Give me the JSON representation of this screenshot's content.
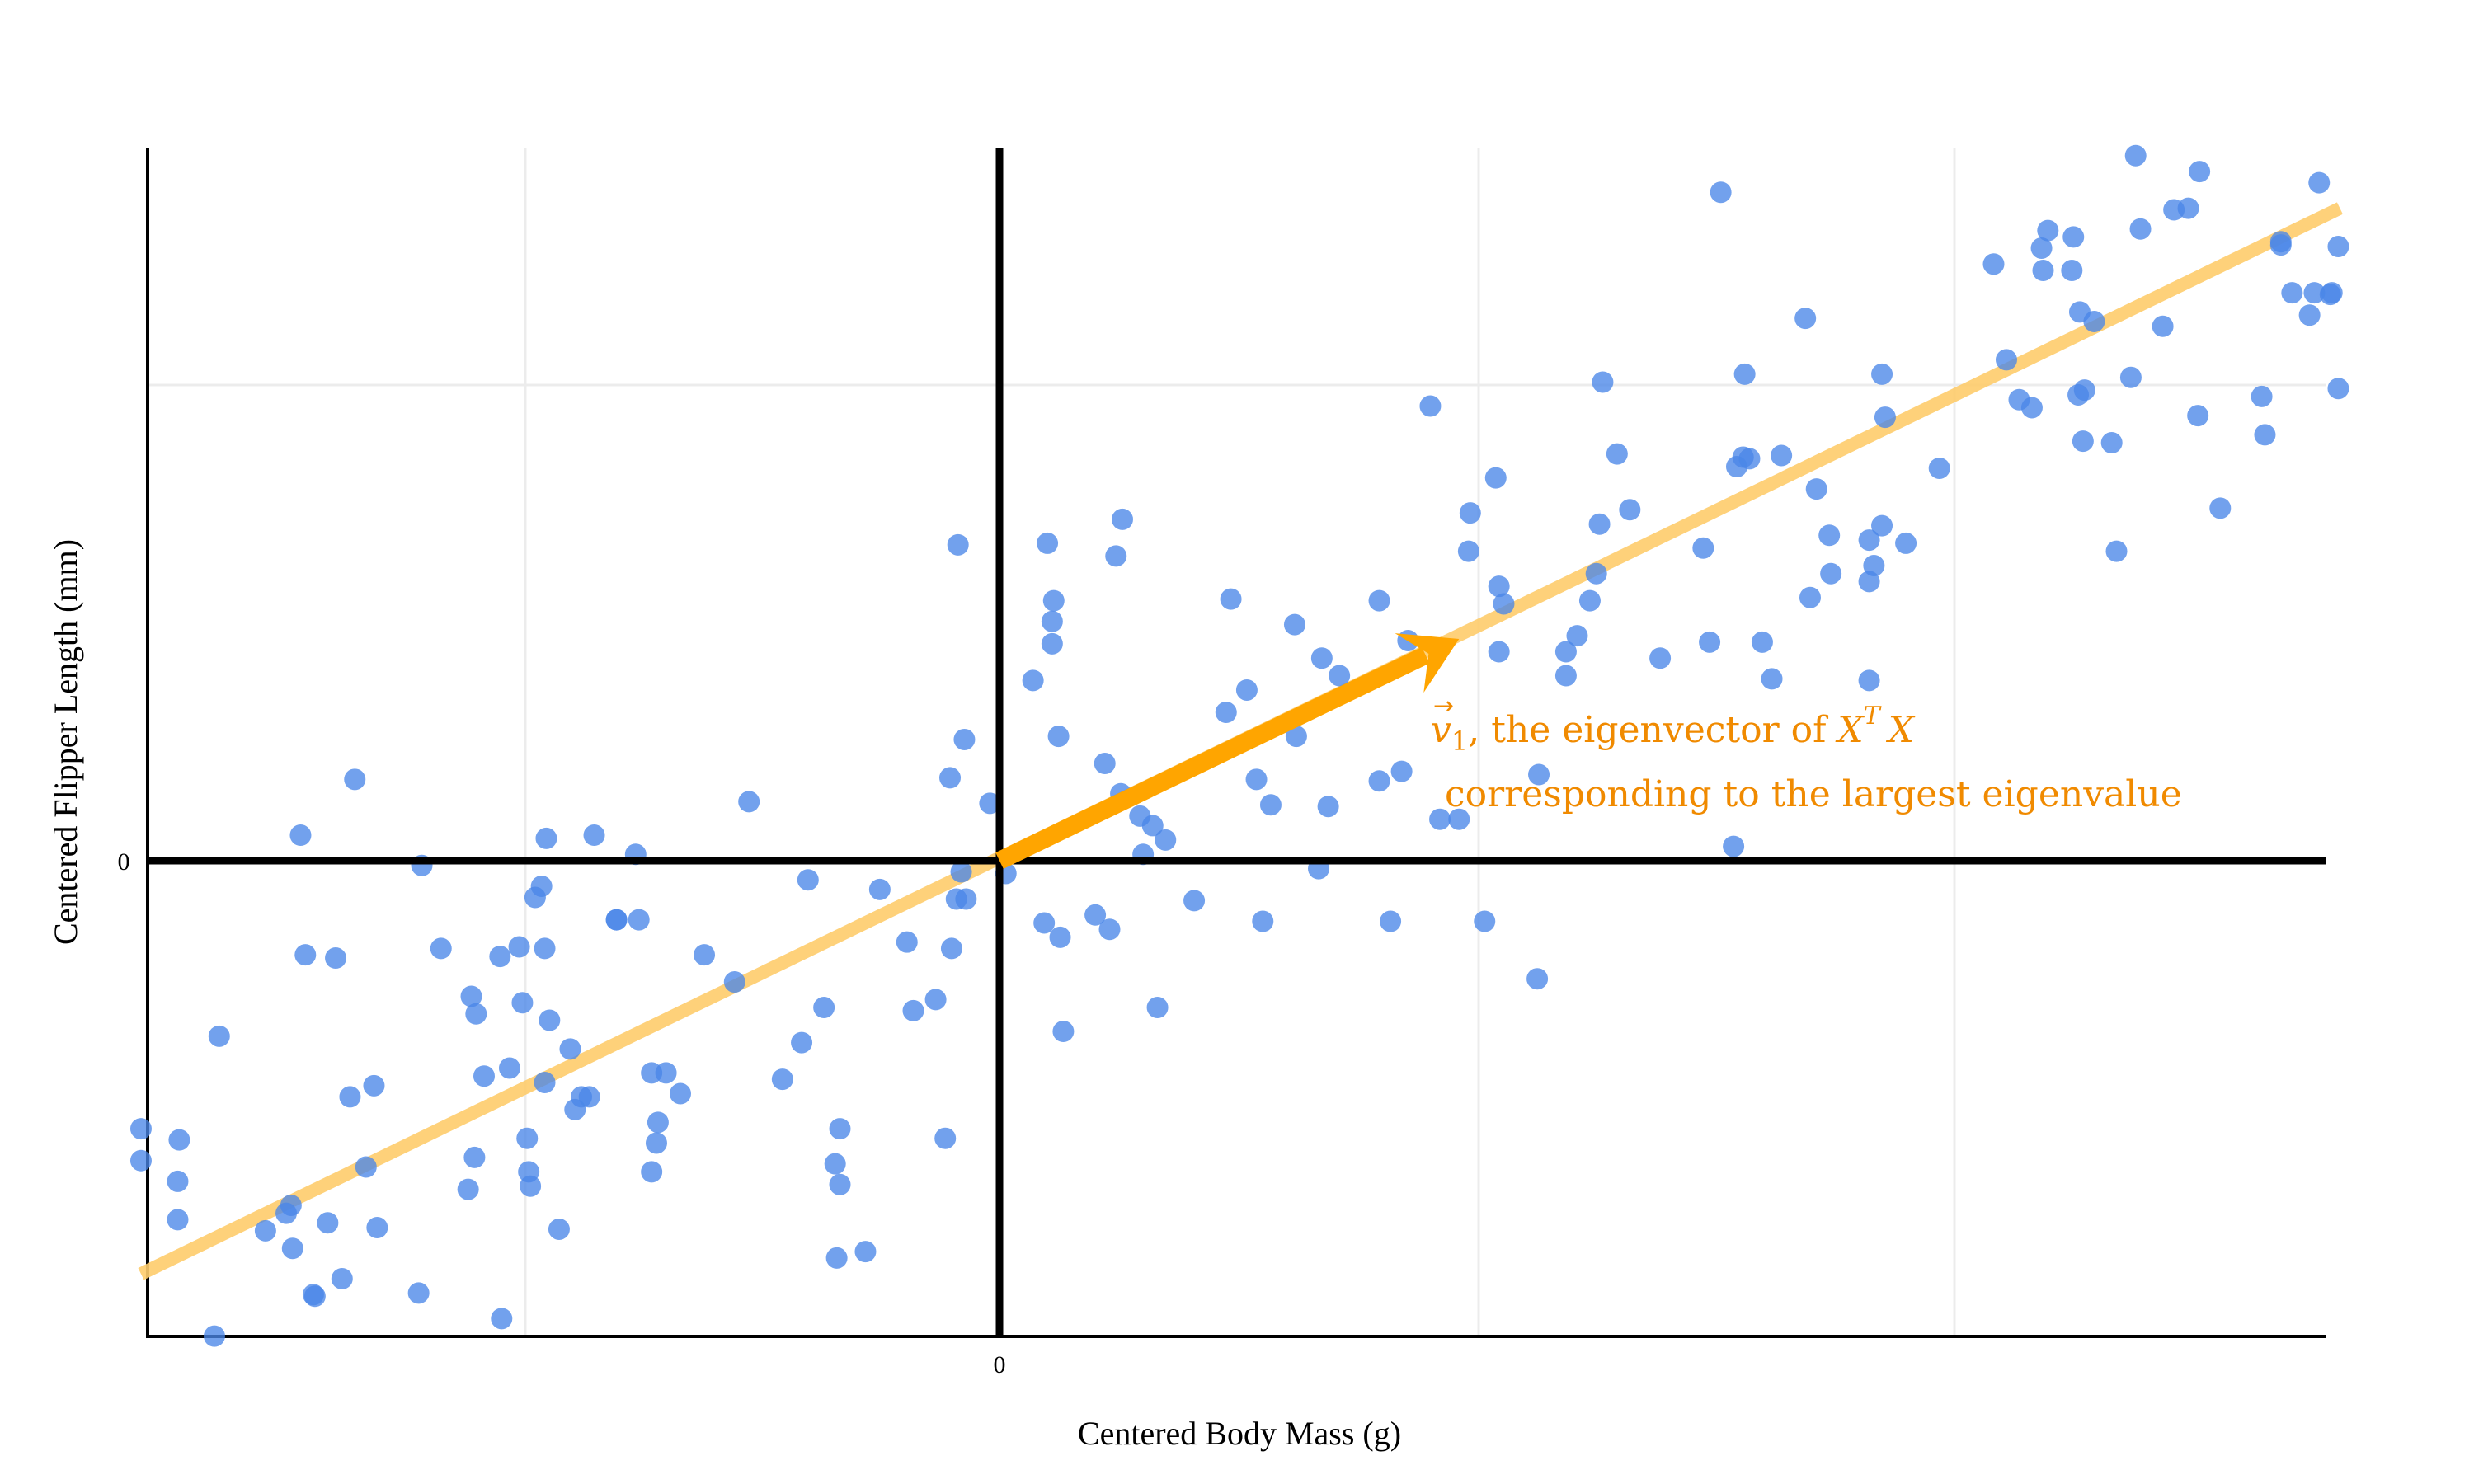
{
  "chart_data": {
    "type": "scatter",
    "title": "",
    "xlabel": "Centered Body Mass (g)",
    "ylabel": "Centered Flipper Length (mm)",
    "x_ticks": [
      "0"
    ],
    "y_ticks": [
      "0"
    ],
    "grid": true,
    "legend": null,
    "units_note": "x,y are plot-space offsets from the origin (0,0); x right-positive, y up-positive, in approximate preview-pixel units (1 unit ≈ 1.935 px at 3000px width)",
    "x_range": [
      -538,
      840
    ],
    "y_range": [
      -302,
      452
    ],
    "point_color": "#4a86e8",
    "points": [
      [
        -538,
        -168
      ],
      [
        -538,
        -188
      ],
      [
        -514,
        -175
      ],
      [
        -515,
        -201
      ],
      [
        -515,
        -225
      ],
      [
        -489,
        -110
      ],
      [
        -492,
        -298
      ],
      [
        -460,
        -232
      ],
      [
        -447,
        -221
      ],
      [
        -444,
        -216
      ],
      [
        -443,
        -243
      ],
      [
        -430,
        -272
      ],
      [
        -435,
        -59
      ],
      [
        -438,
        16
      ],
      [
        -421,
        -227
      ],
      [
        -416,
        -61
      ],
      [
        -412,
        -262
      ],
      [
        -429,
        -273
      ],
      [
        -407,
        -148
      ],
      [
        -397,
        -192
      ],
      [
        -390,
        -230
      ],
      [
        -392,
        -141
      ],
      [
        -404,
        51
      ],
      [
        -362,
        -3
      ],
      [
        -364,
        -271
      ],
      [
        -350,
        -55
      ],
      [
        -329,
        -186
      ],
      [
        -333,
        -206
      ],
      [
        -331,
        -85
      ],
      [
        -328,
        -96
      ],
      [
        -323,
        -135
      ],
      [
        -313,
        -60
      ],
      [
        -307,
        -130
      ],
      [
        -312,
        -287
      ],
      [
        -301,
        -54
      ],
      [
        -299,
        -89
      ],
      [
        -296,
        -174
      ],
      [
        -295,
        -195
      ],
      [
        -294,
        -204
      ],
      [
        -291,
        -23
      ],
      [
        -287,
        -16
      ],
      [
        -285,
        -55
      ],
      [
        -284,
        14
      ],
      [
        -282,
        -100
      ],
      [
        -285,
        -139
      ],
      [
        -276,
        -231
      ],
      [
        -269,
        -118
      ],
      [
        -266,
        -156
      ],
      [
        -262,
        -148
      ],
      [
        -257,
        -148
      ],
      [
        -254,
        16
      ],
      [
        -240,
        -37
      ],
      [
        -240,
        -37
      ],
      [
        -226,
        -37
      ],
      [
        -228,
        4
      ],
      [
        -218,
        -133
      ],
      [
        -218,
        -195
      ],
      [
        -214,
        -164
      ],
      [
        -215,
        -177
      ],
      [
        -209,
        -133
      ],
      [
        -200,
        -146
      ],
      [
        -185,
        -59
      ],
      [
        -166,
        -76
      ],
      [
        -157,
        37
      ],
      [
        -136,
        -137
      ],
      [
        -120,
        -12
      ],
      [
        -124,
        -114
      ],
      [
        -110,
        -92
      ],
      [
        -100,
        -168
      ],
      [
        -103,
        -190
      ],
      [
        -100,
        -203
      ],
      [
        -102,
        -249
      ],
      [
        -84,
        -245
      ],
      [
        -75,
        -18
      ],
      [
        -58,
        -51
      ],
      [
        -54,
        -94
      ],
      [
        -40,
        -87
      ],
      [
        -34,
        -174
      ],
      [
        -31,
        52
      ],
      [
        -30,
        -55
      ],
      [
        -27,
        -24
      ],
      [
        -24,
        -7
      ],
      [
        -21,
        -24
      ],
      [
        -26,
        198
      ],
      [
        -22,
        76
      ],
      [
        -6,
        36
      ],
      [
        4,
        -8
      ],
      [
        21,
        113
      ],
      [
        28,
        -39
      ],
      [
        30,
        199
      ],
      [
        33,
        150
      ],
      [
        33,
        136
      ],
      [
        34,
        163
      ],
      [
        37,
        78
      ],
      [
        38,
        -48
      ],
      [
        40,
        -107
      ],
      [
        60,
        -34
      ],
      [
        66,
        61
      ],
      [
        69,
        -43
      ],
      [
        73,
        191
      ],
      [
        77,
        214
      ],
      [
        76,
        42
      ],
      [
        88,
        28
      ],
      [
        90,
        4
      ],
      [
        96,
        22
      ],
      [
        99,
        -92
      ],
      [
        104,
        13
      ],
      [
        122,
        -25
      ],
      [
        142,
        93
      ],
      [
        145,
        164
      ],
      [
        155,
        107
      ],
      [
        161,
        51
      ],
      [
        165,
        -38
      ],
      [
        170,
        35
      ],
      [
        186,
        78
      ],
      [
        185,
        148
      ],
      [
        202,
        127
      ],
      [
        200,
        -5
      ],
      [
        206,
        34
      ],
      [
        213,
        116
      ],
      [
        238,
        50
      ],
      [
        238,
        163
      ],
      [
        245,
        -38
      ],
      [
        252,
        56
      ],
      [
        256,
        138
      ],
      [
        270,
        285
      ],
      [
        276,
        26
      ],
      [
        288,
        26
      ],
      [
        294,
        194
      ],
      [
        295,
        218
      ],
      [
        304,
        -38
      ],
      [
        311,
        240
      ],
      [
        313,
        172
      ],
      [
        313,
        131
      ],
      [
        316,
        161
      ],
      [
        337,
        -74
      ],
      [
        338,
        54
      ],
      [
        355,
        116
      ],
      [
        355,
        131
      ],
      [
        362,
        141
      ],
      [
        370,
        163
      ],
      [
        374,
        180
      ],
      [
        376,
        211
      ],
      [
        378,
        300
      ],
      [
        387,
        255
      ],
      [
        395,
        220
      ],
      [
        414,
        127
      ],
      [
        441,
        196
      ],
      [
        445,
        137
      ],
      [
        452,
        419
      ],
      [
        460,
        9
      ],
      [
        462,
        247
      ],
      [
        466,
        253
      ],
      [
        467,
        305
      ],
      [
        470,
        252
      ],
      [
        478,
        137
      ],
      [
        484,
        114
      ],
      [
        490,
        254
      ],
      [
        505,
        340
      ],
      [
        508,
        165
      ],
      [
        512,
        233
      ],
      [
        520,
        204
      ],
      [
        521,
        180
      ],
      [
        545,
        113
      ],
      [
        545,
        175
      ],
      [
        545,
        201
      ],
      [
        553,
        305
      ],
      [
        553,
        210
      ],
      [
        555,
        278
      ],
      [
        548,
        185
      ],
      [
        568,
        199
      ],
      [
        589,
        246
      ],
      [
        623,
        374
      ],
      [
        631,
        314
      ],
      [
        639,
        289
      ],
      [
        647,
        284
      ],
      [
        654,
        370
      ],
      [
        653,
        384
      ],
      [
        657,
        395
      ],
      [
        672,
        370
      ],
      [
        673,
        391
      ],
      [
        676,
        292
      ],
      [
        677,
        344
      ],
      [
        679,
        263
      ],
      [
        680,
        295
      ],
      [
        686,
        338
      ],
      [
        697,
        262
      ],
      [
        700,
        194
      ],
      [
        709,
        303
      ],
      [
        712,
        442
      ],
      [
        715,
        396
      ],
      [
        729,
        335
      ],
      [
        736,
        408
      ],
      [
        745,
        409
      ],
      [
        751,
        279
      ],
      [
        752,
        432
      ],
      [
        765,
        221
      ],
      [
        791,
        291
      ],
      [
        793,
        267
      ],
      [
        803,
        388
      ],
      [
        803,
        386
      ],
      [
        810,
        356
      ],
      [
        821,
        342
      ],
      [
        824,
        356
      ],
      [
        827,
        425
      ],
      [
        834,
        355
      ],
      [
        835,
        356
      ],
      [
        839,
        385
      ],
      [
        839,
        296
      ]
    ],
    "fit_line": {
      "label": "principal component direction",
      "color": "#fecc6c",
      "from": [
        -538,
        -259
      ],
      "to": [
        840,
        409
      ]
    },
    "arrow": {
      "label": "eigenvector v1",
      "color": "#ffa500",
      "from": [
        0,
        0
      ],
      "to": [
        288,
        139
      ]
    },
    "annotation": {
      "line1_prefix": "v",
      "line1_sub": "1",
      "line1_text": ", the eigenvector of ",
      "line1_math": "X",
      "line1_sup": "T",
      "line2_text": "corresponding to the largest eigenvalue",
      "color": "#f08a00"
    }
  }
}
